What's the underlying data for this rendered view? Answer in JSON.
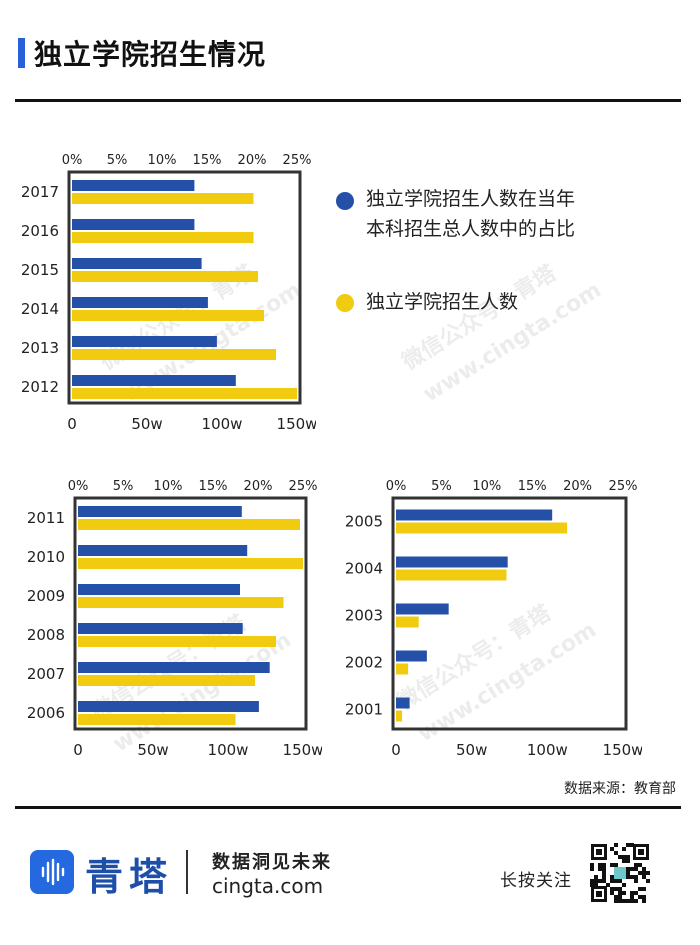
{
  "header": {
    "title": "独立学院招生情况"
  },
  "legend": [
    {
      "label_line1": "独立学院招生人数在当年",
      "label_line2": "本科招生总人数中的占比",
      "color": "#2450a8"
    },
    {
      "label_line1": "独立学院招生人数",
      "label_line2": "",
      "color": "#f0cb10"
    }
  ],
  "source": "数据来源：教育部",
  "watermark": {
    "line1": "微信公众号：青塔",
    "line2": "www.cingta.com"
  },
  "footer": {
    "brand": "青塔",
    "slogan": "数据洞见未来",
    "site": "cingta.com",
    "follow": "长按关注"
  },
  "colors": {
    "share": "#2450a8",
    "count": "#f0cb10"
  },
  "chart_data": [
    {
      "type": "bar",
      "orientation": "horizontal",
      "categories": [
        "2017",
        "2016",
        "2015",
        "2014",
        "2013",
        "2012"
      ],
      "x_top_ticks": [
        "0%",
        "5%",
        "10%",
        "15%",
        "20%",
        "25%"
      ],
      "x_bottom_ticks": [
        "0",
        "50w",
        "100w",
        "150w"
      ],
      "top_range": [
        0,
        25
      ],
      "bottom_range": [
        0,
        150
      ],
      "series": [
        {
          "values": [
            13.6,
            13.6,
            14.4,
            15.1,
            16.1,
            18.2
          ]
        },
        {
          "values": [
            121,
            121,
            124,
            128,
            136,
            150
          ]
        }
      ]
    },
    {
      "type": "bar",
      "orientation": "horizontal",
      "categories": [
        "2011",
        "2010",
        "2009",
        "2008",
        "2007",
        "2006"
      ],
      "x_top_ticks": [
        "0%",
        "5%",
        "10%",
        "15%",
        "20%",
        "25%"
      ],
      "x_bottom_ticks": [
        "0",
        "50w",
        "100w",
        "150w"
      ],
      "top_range": [
        0,
        25
      ],
      "bottom_range": [
        0,
        150
      ],
      "series": [
        {
          "values": [
            18.2,
            18.8,
            18.0,
            18.3,
            21.3,
            20.1
          ]
        },
        {
          "values": [
            148,
            150,
            137,
            132,
            118,
            105
          ]
        }
      ]
    },
    {
      "type": "bar",
      "orientation": "horizontal",
      "categories": [
        "2005",
        "2004",
        "2003",
        "2002",
        "2001"
      ],
      "x_top_ticks": [
        "0%",
        "5%",
        "10%",
        "15%",
        "20%",
        "25%"
      ],
      "x_bottom_ticks": [
        "0",
        "50w",
        "100w",
        "150w"
      ],
      "top_range": [
        0,
        25
      ],
      "bottom_range": [
        0,
        150
      ],
      "series": [
        {
          "values": [
            17.2,
            12.3,
            5.8,
            3.4,
            1.5
          ]
        },
        {
          "values": [
            113,
            73,
            15,
            8,
            4
          ]
        }
      ]
    }
  ]
}
